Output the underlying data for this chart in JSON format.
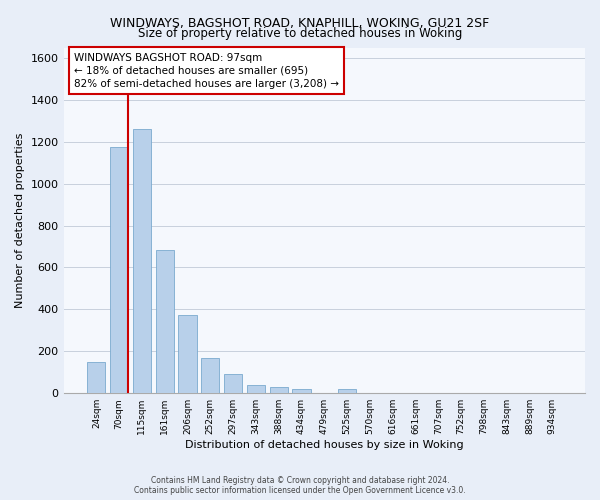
{
  "title": "WINDWAYS, BAGSHOT ROAD, KNAPHILL, WOKING, GU21 2SF",
  "subtitle": "Size of property relative to detached houses in Woking",
  "xlabel": "Distribution of detached houses by size in Woking",
  "ylabel": "Number of detached properties",
  "bar_labels": [
    "24sqm",
    "70sqm",
    "115sqm",
    "161sqm",
    "206sqm",
    "252sqm",
    "297sqm",
    "343sqm",
    "388sqm",
    "434sqm",
    "479sqm",
    "525sqm",
    "570sqm",
    "616sqm",
    "661sqm",
    "707sqm",
    "752sqm",
    "798sqm",
    "843sqm",
    "889sqm",
    "934sqm"
  ],
  "bar_values": [
    150,
    1175,
    1260,
    685,
    375,
    170,
    90,
    38,
    28,
    20,
    0,
    18,
    0,
    0,
    0,
    0,
    0,
    0,
    0,
    0,
    0
  ],
  "bar_color": "#b8d0ea",
  "bar_edge_color": "#7aaacf",
  "ylim": [
    0,
    1650
  ],
  "yticks": [
    0,
    200,
    400,
    600,
    800,
    1000,
    1200,
    1400,
    1600
  ],
  "vline_color": "#cc0000",
  "annotation_line1": "WINDWAYS BAGSHOT ROAD: 97sqm",
  "annotation_line2": "← 18% of detached houses are smaller (695)",
  "annotation_line3": "82% of semi-detached houses are larger (3,208) →",
  "footer_line1": "Contains HM Land Registry data © Crown copyright and database right 2024.",
  "footer_line2": "Contains public sector information licensed under the Open Government Licence v3.0.",
  "bg_color": "#e8eef8",
  "plot_bg_color": "#f5f8fd",
  "grid_color": "#c8d0dc"
}
